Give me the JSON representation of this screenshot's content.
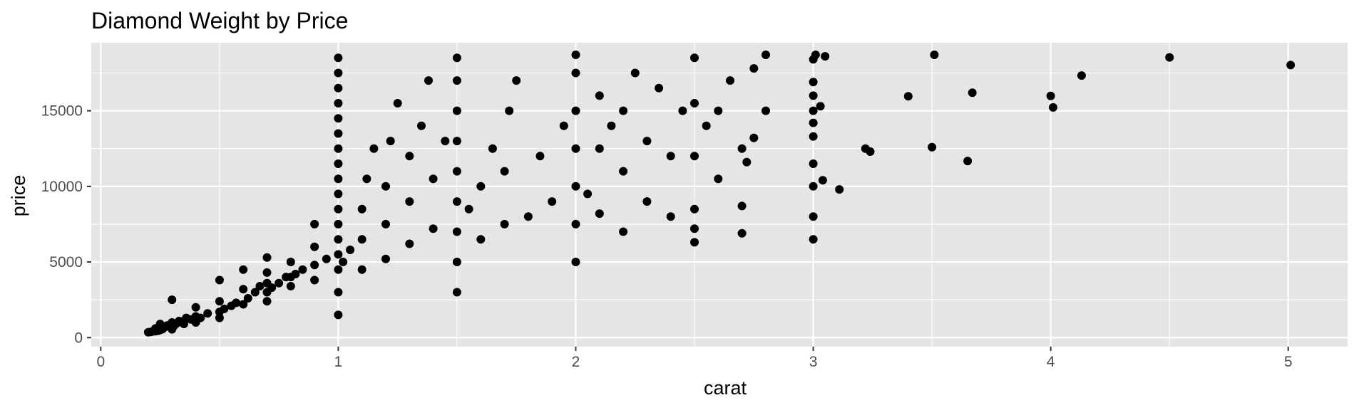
{
  "chart_data": {
    "type": "scatter",
    "title": "Diamond Weight by Price",
    "xlabel": "carat",
    "ylabel": "price",
    "xlim": [
      -0.04,
      5.25
    ],
    "ylim": [
      -600,
      19500
    ],
    "x_ticks": [
      0,
      1,
      2,
      3,
      4,
      5
    ],
    "x_minor_ticks": [
      0.5,
      1.5,
      2.5,
      3.5,
      4.5
    ],
    "y_ticks": [
      0,
      5000,
      10000,
      15000
    ],
    "y_minor_ticks": [
      2500,
      7500,
      12500,
      17500
    ],
    "grid": true,
    "legend": "none",
    "colors": {
      "panel_background": "#e5e5e5",
      "grid": "#ffffff",
      "point": "#000000",
      "tick_label": "#4d4d4d"
    },
    "series": [
      {
        "points": [
          [
            0.2,
            350
          ],
          [
            0.21,
            380
          ],
          [
            0.22,
            410
          ],
          [
            0.23,
            420
          ],
          [
            0.23,
            600
          ],
          [
            0.24,
            450
          ],
          [
            0.25,
            500
          ],
          [
            0.25,
            900
          ],
          [
            0.26,
            560
          ],
          [
            0.27,
            700
          ],
          [
            0.28,
            800
          ],
          [
            0.3,
            550
          ],
          [
            0.3,
            700
          ],
          [
            0.3,
            1000
          ],
          [
            0.3,
            2500
          ],
          [
            0.31,
            800
          ],
          [
            0.32,
            950
          ],
          [
            0.33,
            1100
          ],
          [
            0.35,
            900
          ],
          [
            0.36,
            1300
          ],
          [
            0.38,
            1200
          ],
          [
            0.4,
            1000
          ],
          [
            0.4,
            1400
          ],
          [
            0.4,
            2000
          ],
          [
            0.42,
            1300
          ],
          [
            0.45,
            1600
          ],
          [
            0.5,
            1300
          ],
          [
            0.5,
            1700
          ],
          [
            0.5,
            2400
          ],
          [
            0.5,
            3800
          ],
          [
            0.52,
            1900
          ],
          [
            0.55,
            2100
          ],
          [
            0.57,
            2300
          ],
          [
            0.6,
            2200
          ],
          [
            0.6,
            3200
          ],
          [
            0.6,
            4500
          ],
          [
            0.62,
            2600
          ],
          [
            0.65,
            3000
          ],
          [
            0.67,
            3400
          ],
          [
            0.7,
            2400
          ],
          [
            0.7,
            3000
          ],
          [
            0.7,
            3600
          ],
          [
            0.7,
            4300
          ],
          [
            0.7,
            5300
          ],
          [
            0.72,
            3300
          ],
          [
            0.75,
            3600
          ],
          [
            0.78,
            4000
          ],
          [
            0.8,
            3400
          ],
          [
            0.8,
            4000
          ],
          [
            0.8,
            5000
          ],
          [
            0.82,
            4200
          ],
          [
            0.85,
            4500
          ],
          [
            0.9,
            3800
          ],
          [
            0.9,
            4800
          ],
          [
            0.9,
            6000
          ],
          [
            0.9,
            7500
          ],
          [
            0.95,
            5200
          ],
          [
            1.0,
            1500
          ],
          [
            1.0,
            3000
          ],
          [
            1.0,
            4500
          ],
          [
            1.0,
            5500
          ],
          [
            1.0,
            6500
          ],
          [
            1.0,
            7500
          ],
          [
            1.0,
            8500
          ],
          [
            1.0,
            9500
          ],
          [
            1.0,
            10500
          ],
          [
            1.0,
            11500
          ],
          [
            1.0,
            12500
          ],
          [
            1.0,
            13500
          ],
          [
            1.0,
            14500
          ],
          [
            1.0,
            15500
          ],
          [
            1.0,
            16500
          ],
          [
            1.0,
            17500
          ],
          [
            1.0,
            18500
          ],
          [
            1.02,
            5000
          ],
          [
            1.05,
            5800
          ],
          [
            1.1,
            4500
          ],
          [
            1.1,
            6500
          ],
          [
            1.1,
            8500
          ],
          [
            1.12,
            10500
          ],
          [
            1.15,
            12500
          ],
          [
            1.2,
            5200
          ],
          [
            1.2,
            7500
          ],
          [
            1.2,
            10000
          ],
          [
            1.22,
            13000
          ],
          [
            1.25,
            15500
          ],
          [
            1.3,
            6200
          ],
          [
            1.3,
            9000
          ],
          [
            1.3,
            12000
          ],
          [
            1.35,
            14000
          ],
          [
            1.38,
            17000
          ],
          [
            1.4,
            7200
          ],
          [
            1.4,
            10500
          ],
          [
            1.45,
            13000
          ],
          [
            1.5,
            3000
          ],
          [
            1.5,
            5000
          ],
          [
            1.5,
            7000
          ],
          [
            1.5,
            9000
          ],
          [
            1.5,
            11000
          ],
          [
            1.5,
            13000
          ],
          [
            1.5,
            15000
          ],
          [
            1.5,
            17000
          ],
          [
            1.5,
            18500
          ],
          [
            1.55,
            8500
          ],
          [
            1.6,
            6500
          ],
          [
            1.6,
            10000
          ],
          [
            1.65,
            12500
          ],
          [
            1.7,
            7500
          ],
          [
            1.7,
            11000
          ],
          [
            1.72,
            15000
          ],
          [
            1.75,
            17000
          ],
          [
            1.8,
            8000
          ],
          [
            1.85,
            12000
          ],
          [
            1.9,
            9000
          ],
          [
            1.95,
            14000
          ],
          [
            2.0,
            5000
          ],
          [
            2.0,
            7500
          ],
          [
            2.0,
            10000
          ],
          [
            2.0,
            12500
          ],
          [
            2.0,
            15000
          ],
          [
            2.0,
            17500
          ],
          [
            2.0,
            18700
          ],
          [
            2.05,
            9500
          ],
          [
            2.1,
            8200
          ],
          [
            2.1,
            12500
          ],
          [
            2.1,
            16000
          ],
          [
            2.15,
            14000
          ],
          [
            2.2,
            7000
          ],
          [
            2.2,
            11000
          ],
          [
            2.2,
            15000
          ],
          [
            2.25,
            17500
          ],
          [
            2.3,
            9000
          ],
          [
            2.3,
            13000
          ],
          [
            2.35,
            16500
          ],
          [
            2.4,
            8000
          ],
          [
            2.4,
            12000
          ],
          [
            2.45,
            15000
          ],
          [
            2.5,
            6300
          ],
          [
            2.5,
            7200
          ],
          [
            2.5,
            8500
          ],
          [
            2.5,
            12000
          ],
          [
            2.5,
            15500
          ],
          [
            2.5,
            18500
          ],
          [
            2.55,
            14000
          ],
          [
            2.6,
            10500
          ],
          [
            2.6,
            15000
          ],
          [
            2.65,
            17000
          ],
          [
            2.7,
            6900
          ],
          [
            2.7,
            8700
          ],
          [
            2.7,
            12500
          ],
          [
            2.72,
            11600
          ],
          [
            2.75,
            13200
          ],
          [
            2.75,
            17800
          ],
          [
            2.8,
            15000
          ],
          [
            2.8,
            18700
          ],
          [
            3.0,
            6500
          ],
          [
            3.0,
            8000
          ],
          [
            3.0,
            10000
          ],
          [
            3.0,
            11500
          ],
          [
            3.0,
            13300
          ],
          [
            3.0,
            14200
          ],
          [
            3.0,
            15000
          ],
          [
            3.0,
            16000
          ],
          [
            3.0,
            16900
          ],
          [
            3.0,
            18400
          ],
          [
            3.01,
            18700
          ],
          [
            3.03,
            15300
          ],
          [
            3.04,
            10400
          ],
          [
            3.05,
            18600
          ],
          [
            3.11,
            9800
          ],
          [
            3.22,
            12500
          ],
          [
            3.24,
            12300
          ],
          [
            3.4,
            15960
          ],
          [
            3.5,
            12590
          ],
          [
            3.51,
            18700
          ],
          [
            3.65,
            11670
          ],
          [
            3.67,
            16190
          ],
          [
            4.0,
            15980
          ],
          [
            4.01,
            15220
          ],
          [
            4.13,
            17330
          ],
          [
            4.5,
            18530
          ],
          [
            5.01,
            18020
          ]
        ]
      }
    ]
  }
}
